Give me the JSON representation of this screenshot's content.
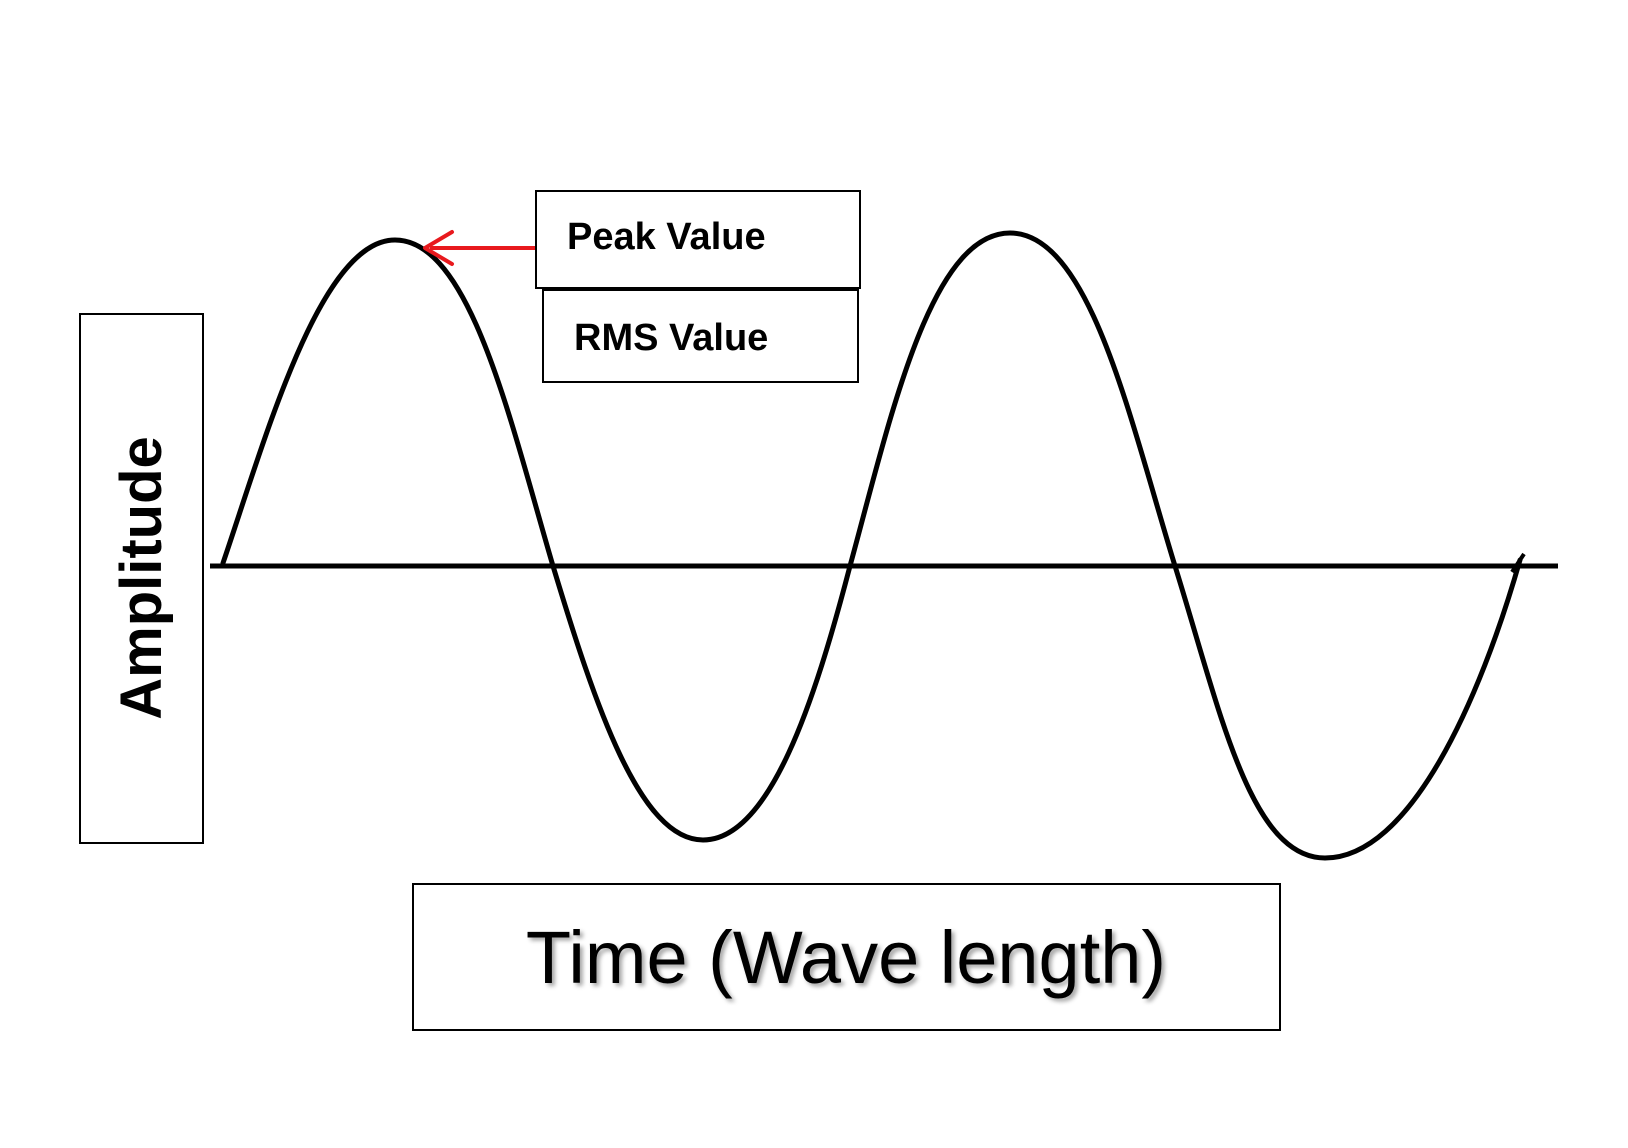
{
  "labels": {
    "peak": "Peak Value",
    "rms": "RMS Value",
    "y_axis": "Amplitude",
    "x_axis": "Time (Wave length)"
  },
  "colors": {
    "wave": "#000000",
    "axis": "#000000",
    "arrow": "#e8191d"
  }
}
